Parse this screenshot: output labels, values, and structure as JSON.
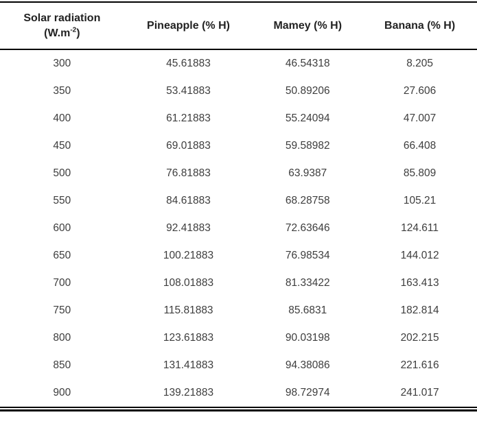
{
  "header_display": {
    "col1_line1": "Solar radiation",
    "col1_unit_prefix": "(W.m",
    "col1_unit_sup": "-2",
    "col1_unit_suffix": ")"
  },
  "chart_data": {
    "type": "table",
    "title": "",
    "columns": [
      "Solar radiation (W.m-2)",
      "Pineapple (% H)",
      "Mamey (% H)",
      "Banana (% H)"
    ],
    "rows": [
      [
        "300",
        "45.61883",
        "46.54318",
        "8.205"
      ],
      [
        "350",
        "53.41883",
        "50.89206",
        "27.606"
      ],
      [
        "400",
        "61.21883",
        "55.24094",
        "47.007"
      ],
      [
        "450",
        "69.01883",
        "59.58982",
        "66.408"
      ],
      [
        "500",
        "76.81883",
        "63.9387",
        "85.809"
      ],
      [
        "550",
        "84.61883",
        "68.28758",
        "105.21"
      ],
      [
        "600",
        "92.41883",
        "72.63646",
        "124.611"
      ],
      [
        "650",
        "100.21883",
        "76.98534",
        "144.012"
      ],
      [
        "700",
        "108.01883",
        "81.33422",
        "163.413"
      ],
      [
        "750",
        "115.81883",
        "85.6831",
        "182.814"
      ],
      [
        "800",
        "123.61883",
        "90.03198",
        "202.215"
      ],
      [
        "850",
        "131.41883",
        "94.38086",
        "221.616"
      ],
      [
        "900",
        "139.21883",
        "98.72974",
        "241.017"
      ]
    ],
    "layout": {
      "grid": "horizontal rules only (top, below header, double bottom)",
      "text_color": "#3d3d3d",
      "rule_color": "#000000",
      "background": "#ffffff"
    }
  }
}
